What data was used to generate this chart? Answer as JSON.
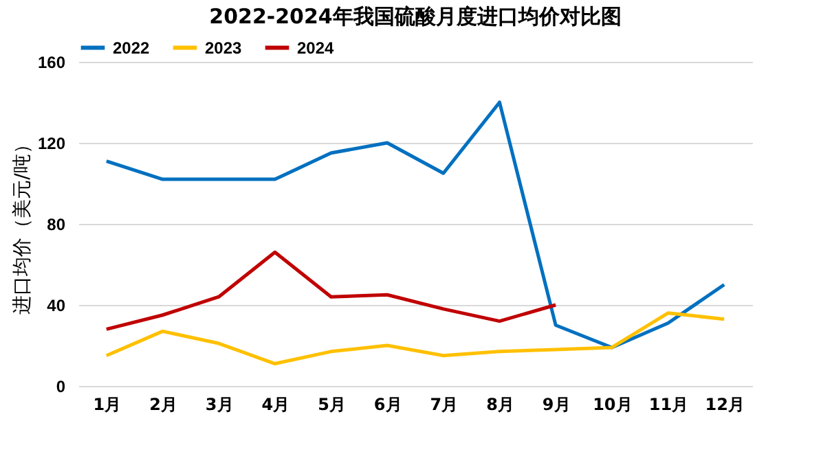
{
  "chart_data": {
    "type": "line",
    "title": "2022-2024年我国硫酸月度进口均价对比图",
    "ylabel": "进口均价（美元/吨）",
    "categories": [
      "1月",
      "2月",
      "3月",
      "4月",
      "5月",
      "6月",
      "7月",
      "8月",
      "9月",
      "10月",
      "11月",
      "12月"
    ],
    "series": [
      {
        "name": "2022",
        "color": "#0070c0",
        "values": [
          111,
          102,
          102,
          102,
          115,
          120,
          105,
          140,
          30,
          19,
          31,
          50
        ]
      },
      {
        "name": "2023",
        "color": "#ffc000",
        "values": [
          15,
          27,
          21,
          11,
          17,
          20,
          15,
          17,
          18,
          19,
          36,
          33
        ]
      },
      {
        "name": "2024",
        "color": "#c00000",
        "values": [
          28,
          35,
          44,
          66,
          44,
          45,
          38,
          32,
          40,
          null,
          null,
          null
        ]
      }
    ],
    "ylim": [
      0,
      160
    ],
    "yticks": [
      0,
      40,
      80,
      120,
      160
    ],
    "grid": "y",
    "legend": "top",
    "marker": "none",
    "line_style": "solid"
  }
}
